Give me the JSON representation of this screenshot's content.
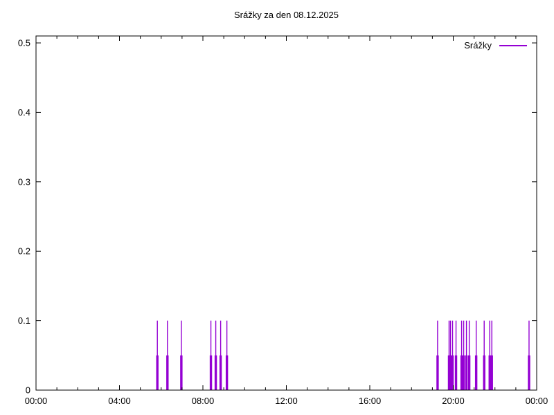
{
  "chart_data": {
    "type": "bar",
    "subtype": "impulses-time-series",
    "title": "Srážky za den 08.12.2025",
    "legend": {
      "label": "Srážky",
      "position": "top-right"
    },
    "series_color": "#9400d3",
    "background_color": "#ffffff",
    "axis_color": "#000000",
    "x_axis": {
      "unit": "time-of-day",
      "range_minutes": [
        0,
        1440
      ],
      "minor_tick_every_hours": 1,
      "major_tick_hours": [
        0,
        4,
        8,
        12,
        16,
        20,
        24
      ],
      "major_tick_labels": [
        "00:00",
        "04:00",
        "08:00",
        "12:00",
        "16:00",
        "20:00",
        "00:00"
      ]
    },
    "y_axis": {
      "range": [
        0,
        0.51
      ],
      "tick_values": [
        0,
        0.1,
        0.2,
        0.3,
        0.4,
        0.5
      ],
      "tick_labels": [
        "0",
        "0.1",
        "0.2",
        "0.3",
        "0.4",
        "0.5"
      ]
    },
    "grid": false,
    "events": [
      {
        "time": "05:49",
        "peak": 0.1,
        "base": 0.05
      },
      {
        "time": "06:18",
        "peak": 0.1,
        "base": 0.05
      },
      {
        "time": "06:58",
        "peak": 0.1,
        "base": 0.05
      },
      {
        "time": "08:23",
        "peak": 0.1,
        "base": 0.05
      },
      {
        "time": "08:37",
        "peak": 0.1,
        "base": 0.05
      },
      {
        "time": "08:51",
        "peak": 0.1,
        "base": 0.05
      },
      {
        "time": "09:09",
        "peak": 0.1,
        "base": 0.05
      },
      {
        "time": "19:15",
        "peak": 0.1,
        "base": 0.05
      },
      {
        "time": "19:48",
        "peak": 0.1,
        "base": 0.05
      },
      {
        "time": "19:52",
        "peak": 0.1,
        "base": 0.05
      },
      {
        "time": "19:58",
        "peak": 0.1,
        "base": 0.05
      },
      {
        "time": "20:08",
        "peak": 0.1,
        "base": 0.05
      },
      {
        "time": "20:24",
        "peak": 0.1,
        "base": 0.05
      },
      {
        "time": "20:30",
        "peak": 0.1,
        "base": 0.05
      },
      {
        "time": "20:38",
        "peak": 0.1,
        "base": 0.05
      },
      {
        "time": "20:46",
        "peak": 0.1,
        "base": 0.05
      },
      {
        "time": "21:06",
        "peak": 0.1,
        "base": 0.05
      },
      {
        "time": "21:29",
        "peak": 0.1,
        "base": 0.05
      },
      {
        "time": "21:45",
        "peak": 0.1,
        "base": 0.05
      },
      {
        "time": "21:51",
        "peak": 0.1,
        "base": 0.05
      },
      {
        "time": "23:38",
        "peak": 0.1,
        "base": 0.05
      }
    ]
  }
}
